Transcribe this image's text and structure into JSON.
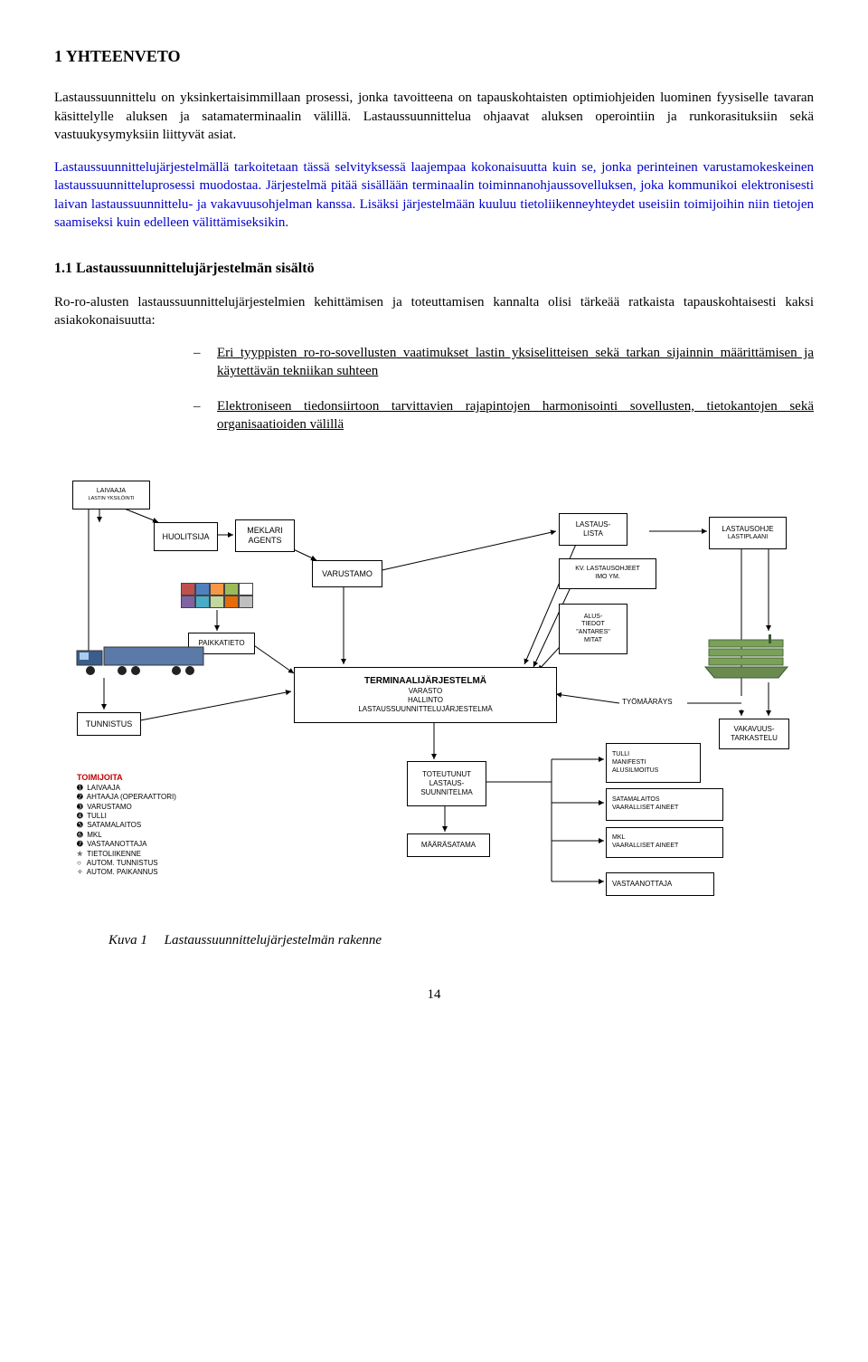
{
  "heading1": "1    YHTEENVETO",
  "p1": "Lastaussuunnittelu on yksinkertaisimmillaan prosessi, jonka tavoitteena on tapauskohtaisten optimiohjeiden luominen fyysiselle tavaran käsittelylle aluksen ja satamaterminaalin välillä. Lastaussuunnittelua ohjaavat aluksen operointiin ja runkorasituksiin sekä vastuukysymyksiin liittyvät asiat.",
  "p2": "Lastaussuunnittelujärjestelmällä tarkoitetaan tässä selvityksessä laajempaa kokonaisuutta kuin se, jonka perinteinen varustamokeskeinen lastaussuunnitteluprosessi muodostaa. Järjestelmä pitää sisällään terminaalin toiminnanohjaussovelluksen, joka kommunikoi elektronisesti laivan lastaussuunnittelu- ja vakavuusohjelman kanssa. Lisäksi järjestelmään kuuluu tietoliikenneyhteydet useisiin toimijoihin niin tietojen saamiseksi kuin edelleen välittämiseksikin.",
  "heading2": "1.1    Lastaussuunnittelujärjestelmän sisältö",
  "p3": "Ro-ro-alusten lastaussuunnittelujärjestelmien kehittämisen ja toteuttamisen kannalta olisi tärkeää ratkaista tapauskohtaisesti kaksi asiakokonaisuutta:",
  "li1": "Eri tyyppisten ro-ro-sovellusten vaatimukset lastin yksiselitteisen sekä tarkan sijainnin määrittämisen ja käytettävän tekniikan suhteen",
  "li2": "Elektroniseen tiedonsiirtoon tarvittavien rajapintojen harmonisointi sovellusten, tietokantojen sekä organisaatioiden välillä",
  "diagram": {
    "laivaaja": {
      "l1": "LAIVAAJA",
      "l2": "LASTIN YKSILÖINTI"
    },
    "huolitsija": "HUOLITSIJA",
    "meklari": {
      "l1": "MEKLARI",
      "l2": "AGENTS"
    },
    "varustamo": "VARUSTAMO",
    "paikkatieto": "PAIKKATIETO",
    "tunnistus": "TUNNISTUS",
    "terminaali": {
      "l1": "TERMINAALIJÄRJESTELMÄ",
      "l2": "VARASTO",
      "l3": "HALLINTO",
      "l4": "LASTAUSSUUNNITTELUJÄRJESTELMÄ"
    },
    "lastauslista": {
      "l1": "LASTAUS-",
      "l2": "LISTA"
    },
    "kvohjeet": {
      "l1": "KV. LASTAUSOHJEET",
      "l2": "IMO YM."
    },
    "alustiedot": {
      "l1": "ALUS-",
      "l2": "TIEDOT",
      "l3": "\"ANTARES\"",
      "l4": "MITAT"
    },
    "lastausohje": {
      "l1": "LASTAUSOHJE",
      "l2": "LASTIPLAANI"
    },
    "tyomaarays": "TYÖMÄÄRÄYS",
    "vakavuus": {
      "l1": "VAKAVUUS-",
      "l2": "TARKASTELU"
    },
    "toteutunut": {
      "l1": "TOTEUTUNUT",
      "l2": "LASTAUS-",
      "l3": "SUUNNITELMA"
    },
    "maarasatama": "MÄÄRÄSATAMA",
    "tulli": {
      "l1": "TULLI",
      "l2": "MANIFESTI",
      "l3": "ALUSILMOITUS"
    },
    "satamalaitos": {
      "l1": "SATAMALAITOS",
      "l2": "VAARALLISET AINEET"
    },
    "mkl": {
      "l1": "MKL",
      "l2": "VAARALLISET AINEET"
    },
    "vastaanottaja": "VASTAANOTTAJA",
    "toimijoita": {
      "title": "TOIMIJOITA",
      "items": [
        {
          "b": "➊",
          "t": "LAIVAAJA"
        },
        {
          "b": "➋",
          "t": "AHTAAJA (OPERAATTORI)"
        },
        {
          "b": "➌",
          "t": "VARUSTAMO"
        },
        {
          "b": "➍",
          "t": "TULLI"
        },
        {
          "b": "➎",
          "t": "SATAMALAITOS"
        },
        {
          "b": "➏",
          "t": "MKL"
        },
        {
          "b": "➐",
          "t": "VASTAANOTTAJA"
        },
        {
          "b": "✯",
          "t": "TIETOLIIKENNE"
        },
        {
          "b": "○",
          "t": "AUTOM. TUNNISTUS"
        },
        {
          "b": "✧",
          "t": "AUTOM. PAIKANNUS"
        }
      ]
    }
  },
  "caption_label": "Kuva 1",
  "caption_text": "Lastaussuunnittelujärjestelmän rakenne",
  "pagenum": "14"
}
